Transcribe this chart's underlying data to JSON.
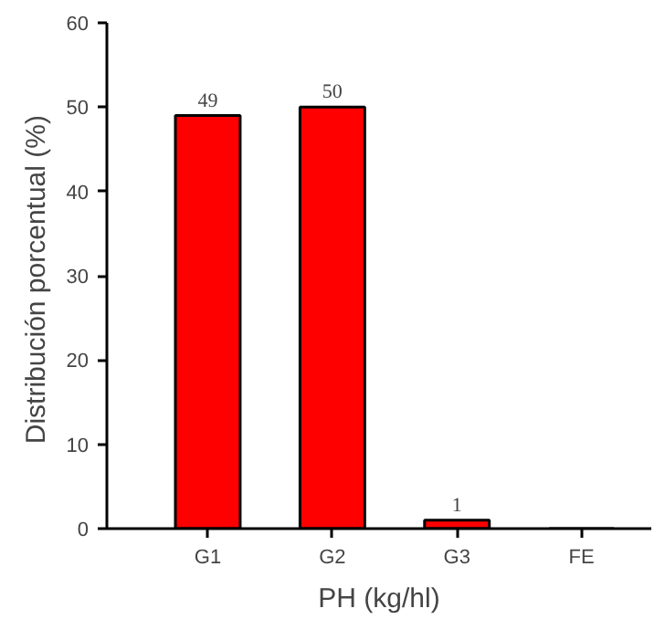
{
  "chart_data": {
    "type": "bar",
    "xlabel": "PH (kg/hl)",
    "ylabel": "Distribución porcentual  (%)",
    "categories": [
      "G1",
      "G2",
      "G3",
      "FE"
    ],
    "values": [
      49,
      50,
      1,
      0
    ],
    "value_labels": [
      "49",
      "50",
      "1",
      null
    ],
    "color": "#ff0000",
    "ylim": [
      0,
      60
    ],
    "yticks": [
      0,
      10,
      20,
      30,
      40,
      50,
      60
    ],
    "grid": false
  }
}
